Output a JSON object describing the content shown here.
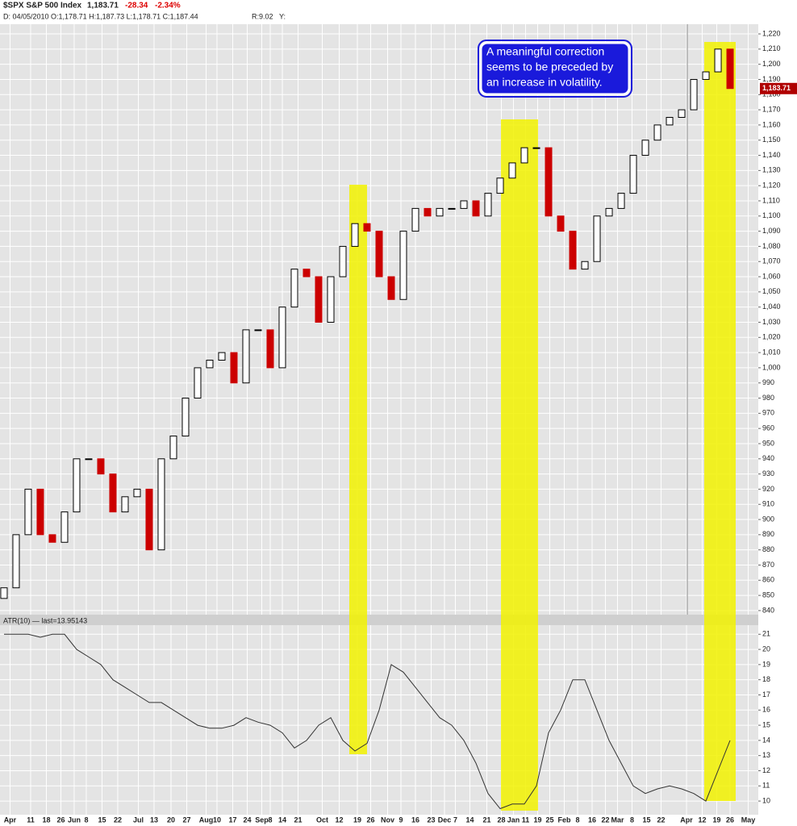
{
  "chart_data": [
    {
      "type": "candlestick",
      "title": "$SPX S&P 500 Index",
      "last": "1,183.71",
      "change": "-28.34",
      "change_pct": "-2.34%",
      "info": "D: 04/05/2010 O:1,178.71 H:1,187.73 L:1,178.71 C:1,187.44",
      "info_r": "R:9.02",
      "info_y": "Y:",
      "annotation": [
        "A meaningful correction",
        "seems to be preceded by",
        "an increase in volatility."
      ],
      "up_color": "#000000",
      "down_color": "#cc0000",
      "open": [
        848,
        855,
        890,
        920,
        890,
        885,
        905,
        940,
        940,
        930,
        905,
        915,
        920,
        880,
        940,
        955,
        980,
        1000,
        1005,
        1010,
        990,
        1025,
        1025,
        1000,
        1040,
        1065,
        1060,
        1030,
        1060,
        1080,
        1095,
        1090,
        1060,
        1045,
        1090,
        1105,
        1100,
        1105,
        1105,
        1110,
        1100,
        1115,
        1125,
        1135,
        1145,
        1145,
        1100,
        1090,
        1065,
        1070,
        1100,
        1105,
        1115,
        1140,
        1150,
        1160,
        1165,
        1170,
        1190,
        1195,
        1210
      ],
      "close": [
        855,
        890,
        920,
        890,
        885,
        905,
        940,
        940,
        930,
        905,
        915,
        920,
        880,
        940,
        955,
        980,
        1000,
        1005,
        1010,
        990,
        1025,
        1025,
        1000,
        1040,
        1065,
        1060,
        1030,
        1060,
        1080,
        1095,
        1090,
        1060,
        1045,
        1090,
        1105,
        1100,
        1105,
        1105,
        1110,
        1100,
        1115,
        1125,
        1135,
        1145,
        1145,
        1100,
        1090,
        1065,
        1070,
        1100,
        1105,
        1115,
        1140,
        1150,
        1160,
        1165,
        1170,
        1190,
        1195,
        1210,
        1184
      ],
      "xlim": [
        -0.33,
        62.33
      ],
      "ylim": [
        837.3,
        1226.4
      ],
      "yticks": [
        840,
        850,
        860,
        870,
        880,
        890,
        900,
        910,
        920,
        930,
        940,
        950,
        960,
        970,
        980,
        990,
        {
          "value": 1000,
          "label": "1,000"
        },
        {
          "value": 1010,
          "label": "1,010"
        },
        {
          "value": 1020,
          "label": "1,020"
        },
        {
          "value": 1030,
          "label": "1,030"
        },
        {
          "value": 1040,
          "label": "1,040"
        },
        {
          "value": 1050,
          "label": "1,050"
        },
        {
          "value": 1060,
          "label": "1,060"
        },
        {
          "value": 1070,
          "label": "1,070"
        },
        {
          "value": 1080,
          "label": "1,080"
        },
        {
          "value": 1090,
          "label": "1,090"
        },
        {
          "value": 1100,
          "label": "1,100"
        },
        {
          "value": 1110,
          "label": "1,110"
        },
        {
          "value": 1120,
          "label": "1,120"
        },
        {
          "value": 1130,
          "label": "1,130"
        },
        {
          "value": 1140,
          "label": "1,140"
        },
        {
          "value": 1150,
          "label": "1,150"
        },
        {
          "value": 1160,
          "label": "1,160"
        },
        {
          "value": 1170,
          "label": "1,170"
        },
        {
          "value": 1180,
          "label": "1,180"
        },
        {
          "value": 1190,
          "label": "1,190"
        },
        {
          "value": 1200,
          "label": "1,200"
        },
        {
          "value": 1210,
          "label": "1,210"
        },
        {
          "value": 1220,
          "label": "1,220"
        }
      ],
      "grid": true
    },
    {
      "type": "line",
      "title": "ATR(10) — last=13.95143",
      "color": "#333333",
      "values": [
        21,
        21,
        21,
        20.8,
        21,
        21,
        20,
        19.5,
        19,
        18,
        17.5,
        17,
        16.5,
        16.5,
        16,
        15.5,
        15,
        14.8,
        14.8,
        15,
        15.5,
        15.2,
        15,
        14.5,
        13.5,
        14,
        15,
        15.5,
        14,
        13.3,
        13.8,
        16,
        19,
        18.5,
        17.5,
        16.5,
        15.5,
        15,
        14,
        12.5,
        10.5,
        9.5,
        9.8,
        9.8,
        11,
        14.5,
        16,
        18,
        18,
        16,
        14,
        12.5,
        11,
        10.5,
        10.8,
        11,
        10.8,
        10.5,
        10,
        12,
        14
      ],
      "xlim": [
        -0.33,
        62.33
      ],
      "ylim": [
        9.1,
        21.6
      ],
      "yticks": [
        10,
        11,
        12,
        13,
        14,
        15,
        16,
        17,
        18,
        19,
        20,
        21
      ],
      "xticks": [
        {
          "value": 0.5,
          "label": "Apr"
        },
        {
          "value": 2.2,
          "label": "11"
        },
        {
          "value": 3.5,
          "label": "18"
        },
        {
          "value": 4.7,
          "label": "26"
        },
        {
          "value": 5.8,
          "label": "Jun"
        },
        {
          "value": 6.8,
          "label": "8"
        },
        {
          "value": 8.1,
          "label": "15"
        },
        {
          "value": 9.4,
          "label": "22"
        },
        {
          "value": 11.1,
          "label": "Jul"
        },
        {
          "value": 12.4,
          "label": "13"
        },
        {
          "value": 13.8,
          "label": "20"
        },
        {
          "value": 15.1,
          "label": "27"
        },
        {
          "value": 16.7,
          "label": "Aug"
        },
        {
          "value": 17.6,
          "label": "10"
        },
        {
          "value": 18.9,
          "label": "17"
        },
        {
          "value": 20.1,
          "label": "24"
        },
        {
          "value": 21.3,
          "label": "Sep"
        },
        {
          "value": 22.0,
          "label": "8"
        },
        {
          "value": 23.0,
          "label": "14"
        },
        {
          "value": 24.3,
          "label": "21"
        },
        {
          "value": 26.3,
          "label": "Oct"
        },
        {
          "value": 27.7,
          "label": "12"
        },
        {
          "value": 29.2,
          "label": "19"
        },
        {
          "value": 30.3,
          "label": "26"
        },
        {
          "value": 31.7,
          "label": "Nov"
        },
        {
          "value": 32.8,
          "label": "9"
        },
        {
          "value": 34.0,
          "label": "16"
        },
        {
          "value": 35.3,
          "label": "23"
        },
        {
          "value": 36.4,
          "label": "Dec"
        },
        {
          "value": 37.3,
          "label": "7"
        },
        {
          "value": 38.5,
          "label": "14"
        },
        {
          "value": 39.9,
          "label": "21"
        },
        {
          "value": 41.1,
          "label": "28"
        },
        {
          "value": 42.1,
          "label": "Jan"
        },
        {
          "value": 43.1,
          "label": "11"
        },
        {
          "value": 44.1,
          "label": "19"
        },
        {
          "value": 45.1,
          "label": "25"
        },
        {
          "value": 46.3,
          "label": "Feb"
        },
        {
          "value": 47.4,
          "label": "8"
        },
        {
          "value": 48.6,
          "label": "16"
        },
        {
          "value": 49.7,
          "label": "22"
        },
        {
          "value": 50.7,
          "label": "Mar"
        },
        {
          "value": 51.9,
          "label": "8"
        },
        {
          "value": 53.1,
          "label": "15"
        },
        {
          "value": 54.3,
          "label": "22"
        },
        {
          "value": 56.4,
          "label": "Apr"
        },
        {
          "value": 57.7,
          "label": "12"
        },
        {
          "value": 58.9,
          "label": "19"
        },
        {
          "value": 60.0,
          "label": "26"
        },
        {
          "value": 61.5,
          "label": "May"
        }
      ],
      "grid": true
    }
  ]
}
